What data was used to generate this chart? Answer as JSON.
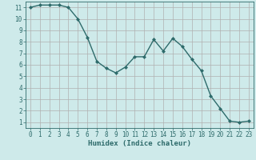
{
  "x": [
    0,
    1,
    2,
    3,
    4,
    5,
    6,
    7,
    8,
    9,
    10,
    11,
    12,
    13,
    14,
    15,
    16,
    17,
    18,
    19,
    20,
    21,
    22,
    23
  ],
  "y": [
    11,
    11.2,
    11.2,
    11.2,
    11,
    10,
    8.4,
    6.3,
    5.7,
    5.3,
    5.8,
    6.7,
    6.7,
    8.2,
    7.2,
    8.3,
    7.6,
    6.5,
    5.5,
    3.3,
    2.2,
    1.1,
    1.0,
    1.1
  ],
  "line_color": "#2e6b6b",
  "marker": "D",
  "marker_size": 2.0,
  "bg_color": "#ceeaea",
  "grid_color_major": "#b0b0b0",
  "grid_color_minor": "#d0d0d0",
  "xlabel": "Humidex (Indice chaleur)",
  "xlabel_color": "#2e6b6b",
  "xlim": [
    -0.5,
    23.5
  ],
  "ylim": [
    0.5,
    11.5
  ],
  "xticks": [
    0,
    1,
    2,
    3,
    4,
    5,
    6,
    7,
    8,
    9,
    10,
    11,
    12,
    13,
    14,
    15,
    16,
    17,
    18,
    19,
    20,
    21,
    22,
    23
  ],
  "yticks": [
    1,
    2,
    3,
    4,
    5,
    6,
    7,
    8,
    9,
    10,
    11
  ],
  "tick_fontsize": 5.5,
  "xlabel_fontsize": 6.5
}
